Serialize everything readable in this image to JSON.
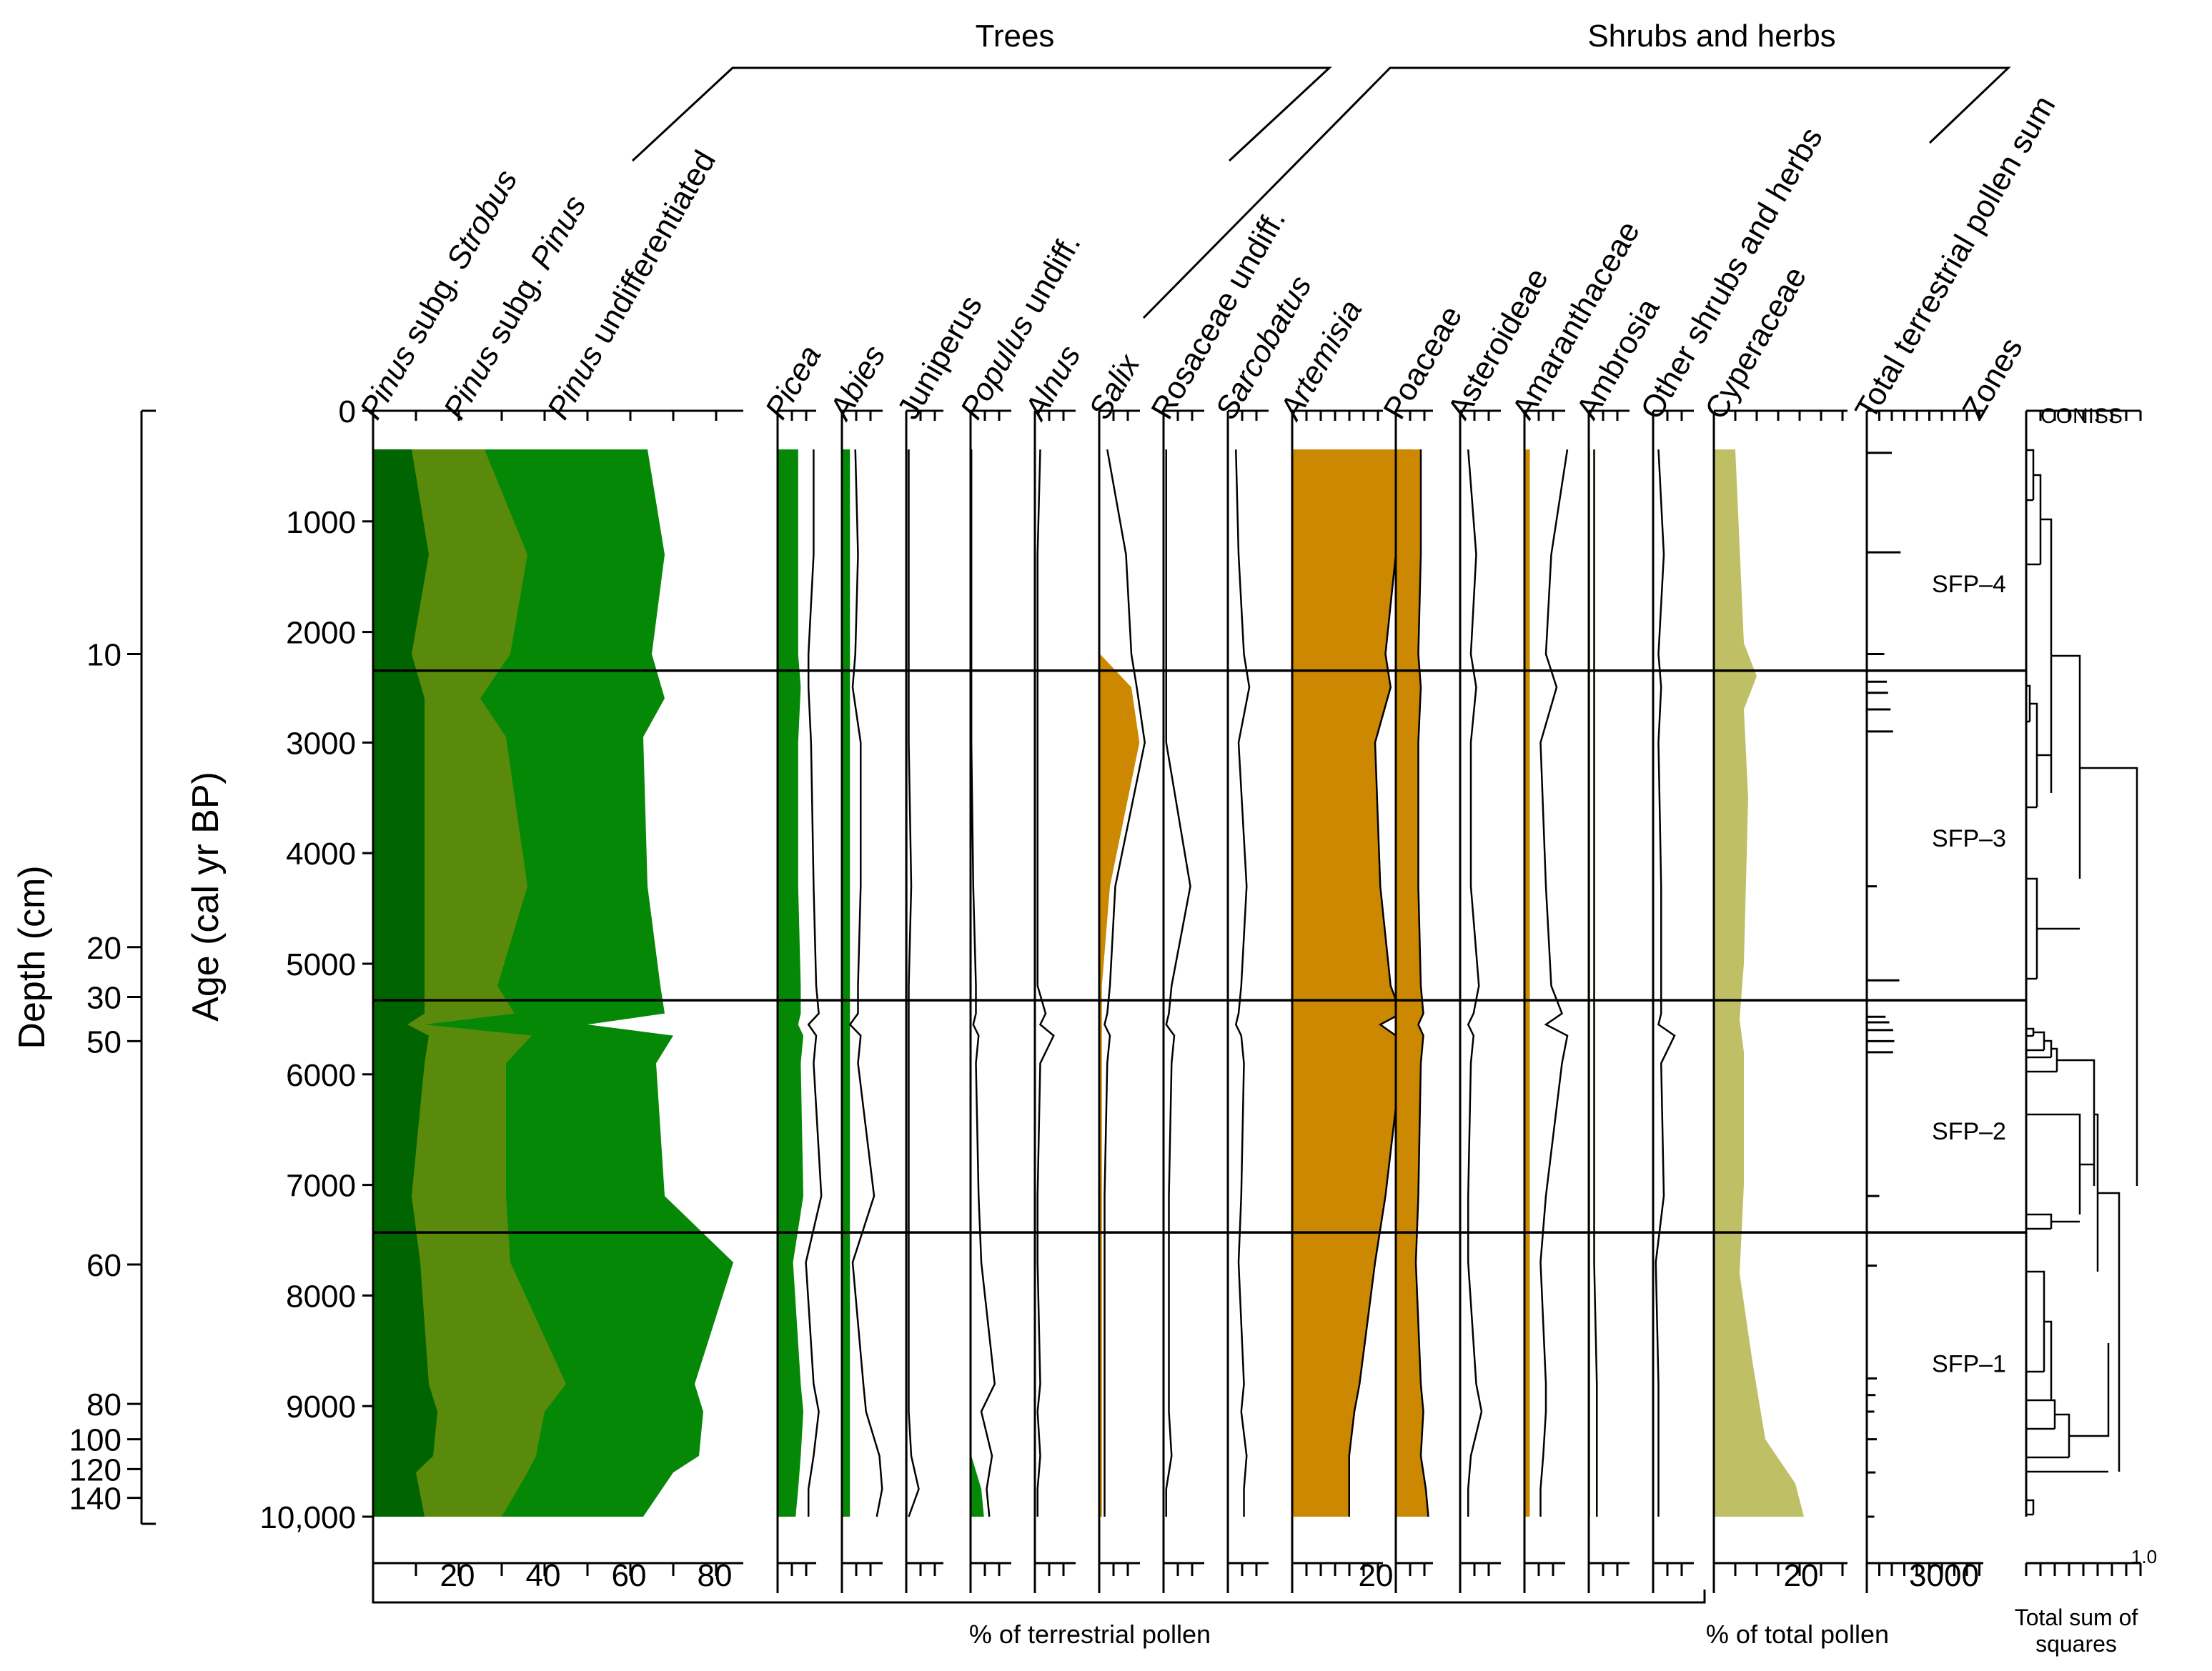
{
  "colors": {
    "dark_green": "#006400",
    "olive_green": "#5a8a0b",
    "green": "#058805",
    "orange": "#cc8800",
    "khaki": "#bfbf66",
    "line": "#000000"
  },
  "chart_data": {
    "type": "area",
    "title": "",
    "groups": {
      "trees": "Trees",
      "shrubs": "Shrubs and herbs"
    },
    "age_axis": {
      "label": "Age (cal yr BP)",
      "range": [
        0,
        10000
      ],
      "ticks": [
        "0",
        "1000",
        "2000",
        "3000",
        "4000",
        "5000",
        "6000",
        "7000",
        "8000",
        "9000",
        "10,000"
      ],
      "tick_values": [
        0,
        1000,
        2000,
        3000,
        4000,
        5000,
        6000,
        7000,
        8000,
        9000,
        10000
      ]
    },
    "depth_axis": {
      "label": "Depth (cm)",
      "ticks": [
        {
          "label": "10",
          "age": 2200
        },
        {
          "label": "20",
          "age": 4850
        },
        {
          "label": "30",
          "age": 5300
        },
        {
          "label": "50",
          "age": 5700
        },
        {
          "label": "60",
          "age": 7720
        },
        {
          "label": "80",
          "age": 8980
        },
        {
          "label": "100",
          "age": 9300
        },
        {
          "label": "120",
          "age": 9570
        },
        {
          "label": "140",
          "age": 9830
        }
      ]
    },
    "x_axis": {
      "terrestrial_ticks": [
        "20",
        "40",
        "60",
        "80"
      ],
      "terrestrial_tick_values": [
        20,
        40,
        60,
        80
      ],
      "artemisia_tick": "20",
      "cyperaceae_tick": "20",
      "sum_tick": "3000",
      "terrestrial_label": "% of terrestrial pollen",
      "total_label": "% of total pollen",
      "coniss_label": "Total sum of squares",
      "coniss_tick": "1.0"
    },
    "taxa": [
      {
        "name": "Pinus subg. Strobus",
        "italic": "Pinus",
        "plain": " subg. ",
        "italic2": "Strobus"
      },
      {
        "name": "Pinus subg. Pinus",
        "italic": "Pinus",
        "plain": " subg. ",
        "italic2": "Pinus"
      },
      {
        "name": "Pinus undifferentiated",
        "italic": "Pinus",
        "plain": " undifferentiated",
        "italic2": ""
      },
      {
        "name": "Picea",
        "italic": "Picea",
        "plain": "",
        "italic2": ""
      },
      {
        "name": "Abies",
        "italic": "Abies",
        "plain": "",
        "italic2": ""
      },
      {
        "name": "Juniperus",
        "italic": "",
        "plain": "Juniperus",
        "italic2": ""
      },
      {
        "name": "Populus undiff.",
        "italic": "Populus",
        "plain": " undiff.",
        "italic2": ""
      },
      {
        "name": "Alnus",
        "italic": "Alnus",
        "plain": "",
        "italic2": ""
      },
      {
        "name": "Salix",
        "italic": "Salix",
        "plain": "",
        "italic2": ""
      },
      {
        "name": "Rosaceae undiff.",
        "italic": "",
        "plain": "Rosaceae undiff.",
        "italic2": ""
      },
      {
        "name": "Sarcobatus",
        "italic": "Sarcobatus",
        "plain": "",
        "italic2": ""
      },
      {
        "name": "Artemisia",
        "italic": "Artemisia",
        "plain": "",
        "italic2": ""
      },
      {
        "name": "Poaceae",
        "italic": "",
        "plain": "Poaceae",
        "italic2": ""
      },
      {
        "name": "Asteroideae",
        "italic": "",
        "plain": "Asteroideae",
        "italic2": ""
      },
      {
        "name": "Amaranthaceae",
        "italic": "",
        "plain": "Amaranthaceae",
        "italic2": ""
      },
      {
        "name": "Ambrosia",
        "italic": "",
        "plain": "Ambrosia",
        "italic2": ""
      },
      {
        "name": "Other shrubs and herbs",
        "italic": "",
        "plain": "Other shrubs and herbs",
        "italic2": ""
      },
      {
        "name": "Cyperaceae",
        "italic": "",
        "plain": "Cyperaceae",
        "italic2": ""
      },
      {
        "name": "Total terrestrial pollen sum",
        "italic": "",
        "plain": "Total terrestrial pollen sum",
        "italic2": ""
      },
      {
        "name": "Zones",
        "italic": "",
        "plain": "Zones",
        "italic2": ""
      }
    ],
    "coniss_title": "CONISS",
    "zones": [
      {
        "name": "SFP–4",
        "label_age": 1550
      },
      {
        "name": "SFP–3",
        "label_age": 3850
      },
      {
        "name": "SFP–2",
        "label_age": 6500
      },
      {
        "name": "SFP–1",
        "label_age": 8600
      }
    ],
    "zone_boundaries": [
      2350,
      5330,
      7430
    ],
    "pinus_cumulative": {
      "ages": [
        350,
        1300,
        2200,
        2600,
        2950,
        4300,
        5200,
        5450,
        5550,
        5650,
        5900,
        7100,
        7700,
        8800,
        9050,
        9450,
        9600,
        10000
      ],
      "strobus": [
        9,
        13,
        9,
        12,
        12,
        12,
        12,
        12,
        8,
        13,
        12,
        9,
        11,
        13,
        15,
        14,
        10,
        12
      ],
      "subg_pinus": [
        26,
        36,
        32,
        25,
        31,
        36,
        29,
        33,
        12,
        37,
        31,
        31,
        32,
        45,
        40,
        38,
        36,
        30
      ],
      "undiff": [
        64,
        68,
        65,
        68,
        63,
        64,
        67,
        68,
        50,
        70,
        66,
        68,
        84,
        75,
        77,
        76,
        70,
        63
      ]
    },
    "cyperaceae": {
      "ages": [
        350,
        2100,
        2400,
        2700,
        3500,
        5000,
        5500,
        5800,
        7000,
        7800,
        8600,
        9300,
        9700,
        10000
      ],
      "values": [
        5,
        7,
        10,
        7,
        8,
        7,
        6,
        7,
        7,
        6,
        9,
        12,
        19,
        21
      ]
    },
    "pollen_sum": {
      "ages": [
        380,
        1280,
        2200,
        2450,
        2550,
        2700,
        2900,
        4300,
        5150,
        5480,
        5530,
        5600,
        5700,
        5800,
        7100,
        7730,
        8750,
        8900,
        9050,
        9300,
        9600,
        10000
      ],
      "values": [
        1000,
        1350,
        700,
        800,
        850,
        950,
        1050,
        400,
        1300,
        750,
        900,
        1050,
        1100,
        1050,
        500,
        400,
        400,
        350,
        300,
        400,
        350,
        300
      ]
    },
    "coniss_note": "CONISS dendrogram rendered schematically"
  }
}
